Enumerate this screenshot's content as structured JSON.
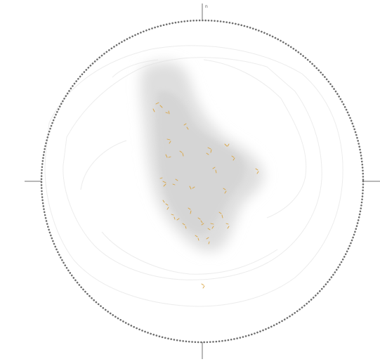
{
  "compass": {
    "north_label": "n"
  },
  "colors": {
    "ring": "#6e6e6e",
    "cross": "#707070",
    "contour": "#ececec",
    "density": "#cfcfcf",
    "marker": "#d9a441"
  }
}
